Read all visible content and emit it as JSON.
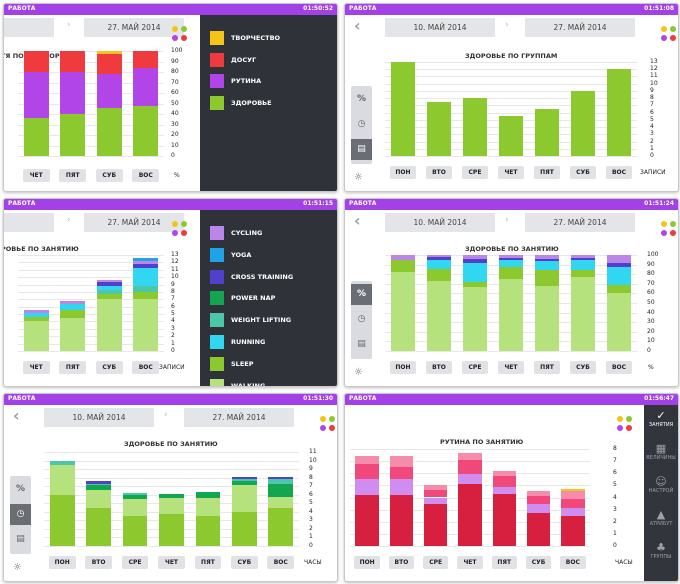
{
  "colors": {
    "topbar": "#a241e6",
    "green": "#8cc92f",
    "purple": "#b245e8",
    "red": "#ef3a3e",
    "yellow": "#f6c418",
    "dark": "#30323a",
    "crimson": "#d7203f",
    "pink": "#f0487a",
    "rose": "#f68cab",
    "lilac": "#cf8df0"
  },
  "panels": [
    {
      "app": "РАБОТА",
      "time": "01:50:52",
      "date_from": "",
      "date_to": "27. МАЙ 2014",
      "title": "ТЯ ПО КАТЕГОРИИ",
      "unit": "%",
      "yticks": [
        "100",
        "90",
        "80",
        "70",
        "60",
        "50",
        "40",
        "30",
        "20",
        "10",
        "0"
      ],
      "categories": [
        "ЧЕТ",
        "ПЯТ",
        "СУБ",
        "ВОС"
      ],
      "legend": [
        {
          "label": "ТВОРЧЕСТВО",
          "color": "#f6c418"
        },
        {
          "label": "ДОСУГ",
          "color": "#ef3a3e"
        },
        {
          "label": "РУТИНА",
          "color": "#b245e8"
        },
        {
          "label": "ЗДОРОВЬЕ",
          "color": "#8cc92f"
        }
      ],
      "chart_data": {
        "type": "bar",
        "stacked": true,
        "categories": [
          "ЧЕТ",
          "ПЯТ",
          "СУБ",
          "ВОС"
        ],
        "series": [
          {
            "name": "ЗДОРОВЬЕ",
            "color": "#8cc92f",
            "values": [
              36,
              40,
              46,
              48
            ]
          },
          {
            "name": "РУТИНА",
            "color": "#b245e8",
            "values": [
              44,
              40,
              32,
              36
            ]
          },
          {
            "name": "ДОСУГ",
            "color": "#ef3a3e",
            "values": [
              20,
              20,
              19,
              16
            ]
          },
          {
            "name": "ТВОРЧЕСТВО",
            "color": "#f6c418",
            "values": [
              0,
              0,
              3,
              0
            ]
          }
        ],
        "ylim": [
          0,
          100
        ]
      }
    },
    {
      "app": "РАБОТА",
      "time": "01:51:08",
      "date_from": "10. МАЙ 2014",
      "date_to": "27. МАЙ 2014",
      "title": "ЗДОРОВЬЕ ПО ГРУППАМ",
      "unit": "ЗАПИСИ",
      "yticks": [
        "13",
        "12",
        "11",
        "10",
        "9",
        "8",
        "7",
        "6",
        "5",
        "4",
        "3",
        "2",
        "1",
        "0"
      ],
      "categories": [
        "ПОН",
        "ВТО",
        "СРЕ",
        "ЧЕТ",
        "ПЯТ",
        "СУБ",
        "ВОС"
      ],
      "side_buttons": [
        "%",
        "◷",
        "▤"
      ],
      "chart_data": {
        "type": "bar",
        "categories": [
          "ПОН",
          "ВТО",
          "СРЕ",
          "ЧЕТ",
          "ПЯТ",
          "СУБ",
          "ВОС"
        ],
        "series": [
          {
            "color": "#8cc92f",
            "values": [
              13,
              7.5,
              8,
              5.5,
              6.5,
              9,
              12
            ]
          }
        ],
        "ylim": [
          0,
          13
        ]
      }
    },
    {
      "app": "РАБОТА",
      "time": "01:51:15",
      "date_from": "",
      "date_to": "27. МАЙ 2014",
      "title": "РОВЬЕ ПО ЗАНЯТИЮ",
      "unit": "ЗАПИСИ",
      "yticks": [
        "13",
        "12",
        "11",
        "10",
        "9",
        "8",
        "7",
        "6",
        "5",
        "4",
        "3",
        "2",
        "1",
        "0"
      ],
      "categories": [
        "ЧЕТ",
        "ПЯТ",
        "СУБ",
        "ВОС"
      ],
      "legend": [
        {
          "label": "CYCLING",
          "color": "#bb86e8"
        },
        {
          "label": "YOGA",
          "color": "#1fa3e6"
        },
        {
          "label": "CROSS TRAINING",
          "color": "#5140c9"
        },
        {
          "label": "POWER NAP",
          "color": "#12a650"
        },
        {
          "label": "WEIGHT LIFTING",
          "color": "#4cc8a8"
        },
        {
          "label": "RUNNING",
          "color": "#31d7f0"
        },
        {
          "label": "SLEEP",
          "color": "#8cc92f"
        },
        {
          "label": "WALKING",
          "color": "#b5e27c"
        }
      ],
      "chart_data": {
        "type": "bar",
        "stacked": true,
        "categories": [
          "ЧЕТ",
          "ПЯТ",
          "СУБ",
          "ВОС"
        ],
        "series": [
          {
            "name": "WALKING",
            "color": "#b5e27c",
            "values": [
              4,
              4.5,
              7,
              7
            ]
          },
          {
            "name": "SLEEP",
            "color": "#8cc92f",
            "values": [
              0.6,
              1,
              0.7,
              1
            ]
          },
          {
            "name": "WEIGHT LIFTING",
            "color": "#4cc8a8",
            "values": [
              0,
              0,
              0.5,
              0.8
            ]
          },
          {
            "name": "RUNNING",
            "color": "#31d7f0",
            "values": [
              0.6,
              0.8,
              0.6,
              2.5
            ]
          },
          {
            "name": "CROSS TRAINING",
            "color": "#5140c9",
            "values": [
              0,
              0,
              0.5,
              0.5
            ]
          },
          {
            "name": "CYCLING",
            "color": "#bb86e8",
            "values": [
              0.3,
              0.5,
              0.3,
              0.4
            ]
          },
          {
            "name": "YOGA",
            "color": "#1fa3e6",
            "values": [
              0,
              0,
              0,
              0.4
            ]
          }
        ],
        "ylim": [
          0,
          13
        ]
      }
    },
    {
      "app": "РАБОТА",
      "time": "01:51:24",
      "date_from": "10. МАЙ 2014",
      "date_to": "27. МАЙ 2014",
      "title": "ЗДОРОВЬЕ ПО ЗАНЯТИЮ",
      "unit": "%",
      "yticks": [
        "100",
        "90",
        "80",
        "70",
        "60",
        "50",
        "40",
        "30",
        "20",
        "10",
        "0"
      ],
      "categories": [
        "ПОН",
        "ВТО",
        "СРЕ",
        "ЧЕТ",
        "ПЯТ",
        "СУБ",
        "ВОС"
      ],
      "side_buttons": [
        "%",
        "◷",
        "▤"
      ],
      "chart_data": {
        "type": "bar",
        "stacked": true,
        "categories": [
          "ПОН",
          "ВТО",
          "СРЕ",
          "ЧЕТ",
          "ПЯТ",
          "СУБ",
          "ВОС"
        ],
        "series": [
          {
            "name": "WALKING",
            "color": "#b5e27c",
            "values": [
              82,
              73,
              67,
              75,
              68,
              77,
              60
            ]
          },
          {
            "name": "SLEEP",
            "color": "#8cc92f",
            "values": [
              13,
              12,
              5,
              13,
              16,
              7,
              9
            ]
          },
          {
            "name": "RUNNING",
            "color": "#31d7f0",
            "values": [
              0,
              10,
              20,
              7,
              10,
              11,
              18
            ]
          },
          {
            "name": "CROSS TRAINING",
            "color": "#5140c9",
            "values": [
              0,
              3,
              4,
              2,
              2,
              2,
              5
            ]
          },
          {
            "name": "CYCLING",
            "color": "#bb86e8",
            "values": [
              5,
              2,
              4,
              3,
              4,
              3,
              8
            ]
          }
        ],
        "ylim": [
          0,
          100
        ]
      }
    },
    {
      "app": "РАБОТА",
      "time": "01:51:30",
      "date_from": "10. МАЙ 2014",
      "date_to": "27. МАЙ 2014",
      "title": "ЗДОРОВЬЕ ПО ЗАНЯТИЮ",
      "unit": "ЧАСЫ",
      "yticks": [
        "11",
        "10",
        "9",
        "8",
        "7",
        "6",
        "5",
        "4",
        "3",
        "2",
        "1",
        "0"
      ],
      "categories": [
        "ПОН",
        "ВТО",
        "СРЕ",
        "ЧЕТ",
        "ПЯТ",
        "СУБ",
        "ВОС"
      ],
      "side_buttons": [
        "%",
        "◷",
        "▤"
      ],
      "chart_data": {
        "type": "bar",
        "stacked": true,
        "categories": [
          "ПОН",
          "ВТО",
          "СРЕ",
          "ЧЕТ",
          "ПЯТ",
          "СУБ",
          "ВОС"
        ],
        "series": [
          {
            "name": "SLEEP",
            "color": "#8cc92f",
            "values": [
              6,
              4.5,
              3.5,
              3.8,
              3.5,
              4,
              4.5
            ]
          },
          {
            "name": "WALKING",
            "color": "#b5e27c",
            "values": [
              3.5,
              2,
              2,
              1.8,
              2.1,
              3.1,
              1.2
            ]
          },
          {
            "name": "POWER NAP",
            "color": "#12a650",
            "values": [
              0,
              0.6,
              0.5,
              0.5,
              0.7,
              0.5,
              1.5
            ]
          },
          {
            "name": "WEIGHT LIFTING",
            "color": "#4cc8a8",
            "values": [
              0.5,
              0.2,
              0.2,
              0,
              0,
              0.2,
              0.6
            ]
          },
          {
            "name": "CROSS TRAINING",
            "color": "#5140c9",
            "values": [
              0,
              0.3,
              0,
              0,
              0,
              0.3,
              0.3
            ]
          }
        ],
        "ylim": [
          0,
          11
        ]
      }
    },
    {
      "app": "РАБОТА",
      "time": "01:56:47",
      "date_from": "",
      "date_to": "",
      "title": "РУТИНА ПО ЗАНЯТИЮ",
      "unit": "ЧАСЫ",
      "yticks": [
        "8",
        "7",
        "6",
        "5",
        "4",
        "3",
        "2",
        "1",
        "0"
      ],
      "categories": [
        "ПОН",
        "ВТО",
        "СРЕ",
        "ЧЕТ",
        "ПЯТ",
        "СУБ",
        "ВОС"
      ],
      "nav": [
        {
          "label": "ЗАНЯТИЯ",
          "icon": "✓"
        },
        {
          "label": "ВЕЛИЧИНЫ",
          "icon": "▦"
        },
        {
          "label": "НАСТРОЙ",
          "icon": "☺"
        },
        {
          "label": "АТРИБУТ",
          "icon": "▲"
        },
        {
          "label": "ГРУППЫ",
          "icon": "♣"
        }
      ],
      "chart_data": {
        "type": "bar",
        "stacked": true,
        "categories": [
          "ПОН",
          "ВТО",
          "СРЕ",
          "ЧЕТ",
          "ПЯТ",
          "СУБ",
          "ВОС"
        ],
        "series": [
          {
            "name": "",
            "color": "#d7203f",
            "values": [
              4.2,
              4.2,
              3.5,
              5.1,
              4.3,
              2.7,
              2.5
            ]
          },
          {
            "name": "",
            "color": "#cf8df0",
            "values": [
              1.3,
              1.3,
              0.5,
              0.8,
              0.6,
              0.8,
              0.6
            ]
          },
          {
            "name": "",
            "color": "#f0487a",
            "values": [
              1.3,
              1,
              0.6,
              1.2,
              0.9,
              0.6,
              0.8
            ]
          },
          {
            "name": "",
            "color": "#f68cab",
            "values": [
              0.6,
              0.9,
              0.4,
              0.6,
              0.4,
              0.4,
              0.6
            ]
          },
          {
            "name": "",
            "color": "#f6c418",
            "values": [
              0,
              0,
              0,
              0,
              0,
              0,
              0.2
            ]
          }
        ],
        "ylim": [
          0,
          8
        ]
      }
    }
  ]
}
